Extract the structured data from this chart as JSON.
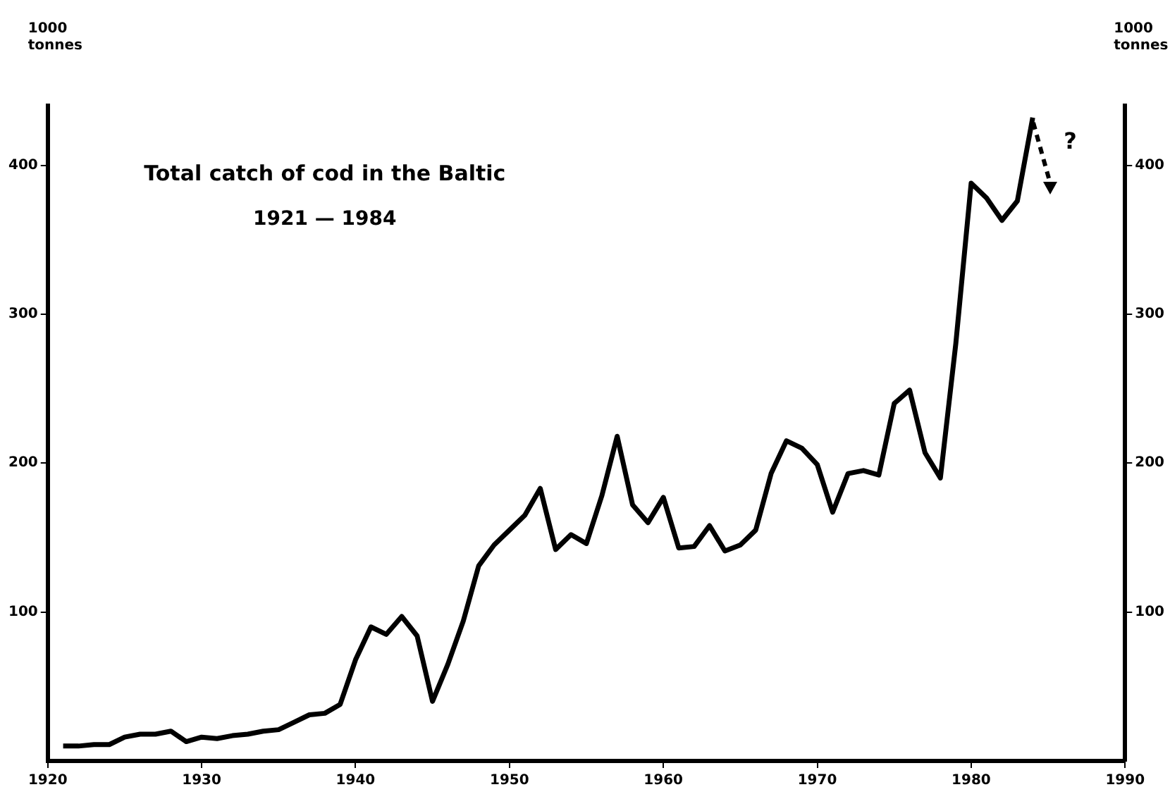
{
  "chart_data": {
    "type": "line",
    "title": "Total catch of cod in the Baltic",
    "subtitle": "1921 — 1984",
    "ylabel": "1000 tonnes",
    "y2label": "1000 tonnes",
    "x": [
      1921,
      1922,
      1923,
      1924,
      1925,
      1926,
      1927,
      1928,
      1929,
      1930,
      1931,
      1932,
      1933,
      1934,
      1935,
      1936,
      1937,
      1938,
      1939,
      1940,
      1941,
      1942,
      1943,
      1944,
      1945,
      1946,
      1947,
      1948,
      1949,
      1950,
      1951,
      1952,
      1953,
      1954,
      1955,
      1956,
      1957,
      1958,
      1959,
      1960,
      1961,
      1962,
      1963,
      1964,
      1965,
      1966,
      1967,
      1968,
      1969,
      1970,
      1971,
      1972,
      1973,
      1974,
      1975,
      1976,
      1977,
      1978,
      1979,
      1980,
      1981,
      1982,
      1983,
      1984
    ],
    "series": [
      {
        "color": "#000000",
        "values": [
          10,
          10,
          11,
          11,
          16,
          18,
          18,
          20,
          13,
          16,
          15,
          17,
          18,
          20,
          21,
          26,
          31,
          32,
          38,
          68,
          90,
          85,
          97,
          84,
          40,
          65,
          94,
          131,
          145,
          155,
          165,
          183,
          142,
          152,
          146,
          178,
          218,
          172,
          160,
          177,
          143,
          144,
          158,
          141,
          145,
          155,
          193,
          215,
          210,
          199,
          167,
          193,
          195,
          192,
          240,
          249,
          207,
          190,
          280,
          388,
          378,
          363,
          376,
          432
        ]
      }
    ],
    "xlim": [
      1920,
      1990
    ],
    "xticks": [
      1920,
      1930,
      1940,
      1950,
      1960,
      1970,
      1980,
      1990
    ],
    "ylim": [
      0,
      440
    ],
    "yticks": [
      100,
      200,
      300,
      400
    ],
    "y2lim": [
      0,
      440
    ],
    "y2ticks": [
      100,
      200,
      300,
      400
    ],
    "annotations": [
      "?"
    ],
    "grid": false,
    "legend": false,
    "marker": "none",
    "line_style": "solid"
  }
}
